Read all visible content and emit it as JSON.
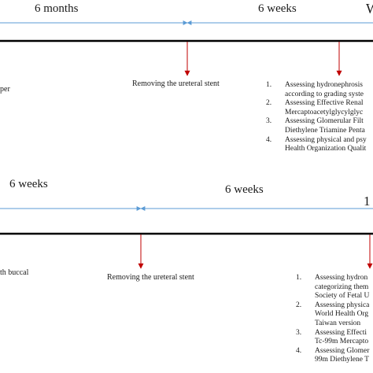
{
  "top": {
    "period_1": "6 months",
    "period_2": "6 weeks",
    "edge_label": "W",
    "left_note": "per",
    "stent_event": "Removing the ureteral stent",
    "steps": [
      {
        "num": "1.",
        "lines": [
          "Assessing hydronephrosis",
          "according to  grading syste"
        ]
      },
      {
        "num": "2.",
        "lines": [
          "Assessing Effective Renal",
          "Mercaptoacetylglycylglyc"
        ]
      },
      {
        "num": "3.",
        "lines": [
          "Assessing Glomerular Filt",
          "Diethylene Triamine Penta"
        ]
      },
      {
        "num": "4.",
        "lines": [
          "Assessing physical and psy",
          "Health Organization Qualit"
        ]
      }
    ]
  },
  "bottom": {
    "period_1": "6 weeks",
    "period_2": "6 weeks",
    "edge_label": "1",
    "left_note": "th buccal",
    "stent_event": "Removing the ureteral stent",
    "steps": [
      {
        "num": "1.",
        "lines": [
          "Assessing hydron",
          "categorizing them",
          "Society of Fetal U"
        ]
      },
      {
        "num": "2.",
        "lines": [
          "Assessing physica",
          "World Health Org",
          "Taiwan version"
        ]
      },
      {
        "num": "3.",
        "lines": [
          "Assessing Effecti",
          "Tc-99m Mercapto"
        ]
      },
      {
        "num": "4.",
        "lines": [
          "Assessing Glomer",
          "99m Diethylene T"
        ]
      }
    ]
  },
  "colors": {
    "axis": "#000000",
    "span_line": "#5b9bd5",
    "event_arrow": "#c00000"
  }
}
